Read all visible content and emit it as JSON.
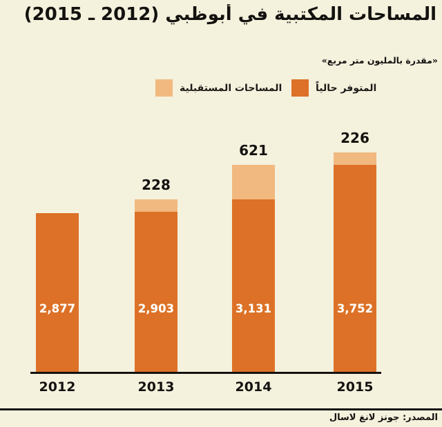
{
  "title": "المساحات المكتبية في أبوظبي (2012 ـ 2015)",
  "subtitle": "«مقدرة بالمليون متر مربع»",
  "legend": {
    "future_label": "المساحات المستقبلية",
    "current_label": "المتوفر حالياً"
  },
  "source": "المصدر: جونز لانغ لاسال",
  "colors": {
    "background": "#f4f1dd",
    "current": "#dd7127",
    "future": "#f1b97f",
    "text": "#14120f",
    "value_label": "#ffffff"
  },
  "chart_data": {
    "type": "bar",
    "stacked": true,
    "title": "المساحات المكتبية في أبوظبي (2012 ـ 2015)",
    "subtitle": "«مقدرة بالمليون متر مربع»",
    "categories": [
      "2012",
      "2013",
      "2014",
      "2015"
    ],
    "series": [
      {
        "name": "المتوفر حالياً",
        "values": [
          2877,
          2903,
          3131,
          3752
        ],
        "labels": [
          "2,877",
          "2,903",
          "3,131",
          "3,752"
        ],
        "color": "#dd7127",
        "label_position": "inside"
      },
      {
        "name": "المساحات المستقبلية",
        "values": [
          0,
          228,
          621,
          226
        ],
        "labels": [
          "",
          "228",
          "621",
          "226"
        ],
        "color": "#f1b97f",
        "label_position": "above"
      }
    ],
    "legend_position": "top",
    "y_axis_visible": false,
    "grid": false,
    "baseline_value": 0
  }
}
